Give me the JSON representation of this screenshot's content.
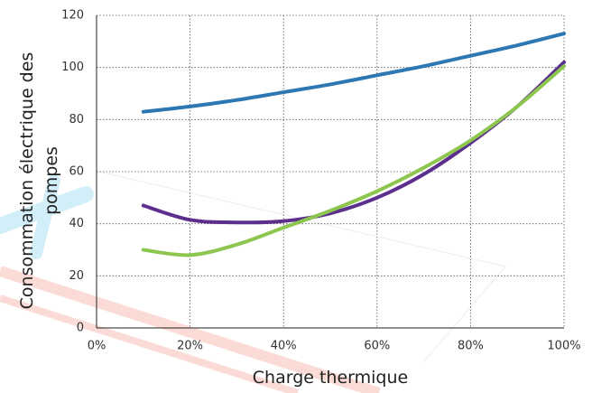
{
  "chart_data": {
    "type": "line",
    "x_label": "Charge thermique",
    "y_label": "Consommation électrique des pompes",
    "x": [
      10,
      20,
      30,
      40,
      50,
      60,
      70,
      80,
      90,
      100
    ],
    "series": [
      {
        "color": "#2d77b3",
        "values": [
          83,
          85,
          87.5,
          90.5,
          93.5,
          97,
          100.5,
          104.5,
          108.5,
          113
        ]
      },
      {
        "color": "#5c2e8e",
        "values": [
          47,
          41.5,
          40.5,
          41,
          44,
          50,
          59,
          71,
          85,
          102
        ]
      },
      {
        "color": "#8cc64e",
        "values": [
          30,
          28,
          32,
          38.5,
          45,
          52.5,
          61.5,
          72,
          85,
          100.5
        ]
      }
    ],
    "xlim": [
      0,
      100
    ],
    "xticks": [
      {
        "value": 0,
        "label": "0%"
      },
      {
        "value": 20,
        "label": "20%"
      },
      {
        "value": 40,
        "label": "40%"
      },
      {
        "value": 60,
        "label": "60%"
      },
      {
        "value": 80,
        "label": "80%"
      },
      {
        "value": 100,
        "label": "100%"
      }
    ],
    "ylim": [
      0,
      120
    ],
    "yticks": [
      0,
      20,
      40,
      60,
      80,
      100,
      120
    ],
    "grid": true
  }
}
